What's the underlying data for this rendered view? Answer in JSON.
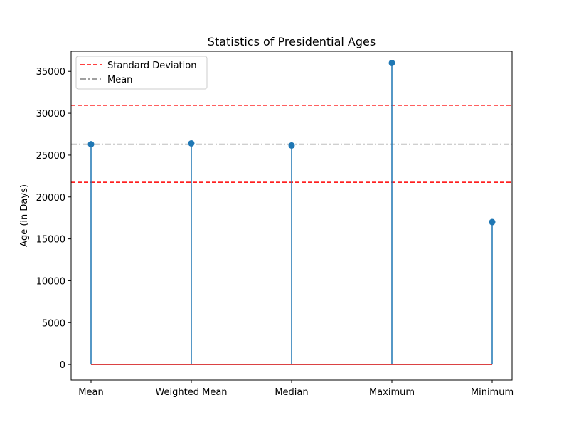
{
  "chart_data": {
    "type": "stem",
    "title": "Statistics of Presidential Ages",
    "xlabel": "",
    "ylabel": "Age (in Days)",
    "categories": [
      "Mean",
      "Weighted Mean",
      "Median",
      "Maximum",
      "Minimum"
    ],
    "values": [
      26300,
      26400,
      26150,
      36000,
      17000
    ],
    "ylim": [
      -1860,
      37400
    ],
    "yticks": [
      0,
      5000,
      10000,
      15000,
      20000,
      25000,
      30000,
      35000
    ],
    "grid": false,
    "legend_position": "top-left",
    "reference_lines": [
      {
        "name": "Standard Deviation",
        "values": [
          21750,
          30950
        ],
        "style": "dashed",
        "color": "#ff0000"
      },
      {
        "name": "Mean",
        "values": [
          26300
        ],
        "style": "dashdot",
        "color": "#808080"
      }
    ],
    "baseline": {
      "value": 0,
      "color": "#d62728"
    },
    "colors": {
      "stem": "#1f77b4",
      "marker": "#1f77b4"
    }
  }
}
